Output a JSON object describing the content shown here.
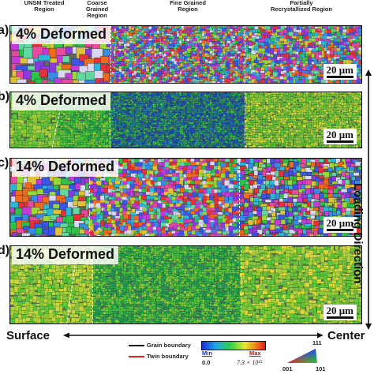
{
  "headers": {
    "unsm": "UNSM Treated Region",
    "coarse": "Coarse Grained Region",
    "fine": "Fine Grained Region",
    "partial": "Partially Recrystallized Region"
  },
  "panels": [
    {
      "letter": "a)",
      "label": "4% Deformed",
      "type": "ipf"
    },
    {
      "letter": "b)",
      "label": "4% Deformed",
      "type": "kam"
    },
    {
      "letter": "c)",
      "label": "14% Deformed",
      "type": "ipf"
    },
    {
      "letter": "d)",
      "label": "14% Deformed",
      "type": "kam"
    }
  ],
  "scale_bar": "20 μm",
  "loading_direction": "Loading Direction",
  "axis": {
    "left": "Surface",
    "right": "Center"
  },
  "legend": {
    "grain_boundary": "Grain boundary",
    "twin_boundary": "Twin boundary",
    "grain_color": "#111111",
    "twin_color": "#e02020",
    "min_label": "Min",
    "max_label": "Max",
    "min_value": "0.0",
    "max_value": "7.3 × 10¹⁵",
    "ipf_111": "111",
    "ipf_001": "001",
    "ipf_101": "101"
  }
}
